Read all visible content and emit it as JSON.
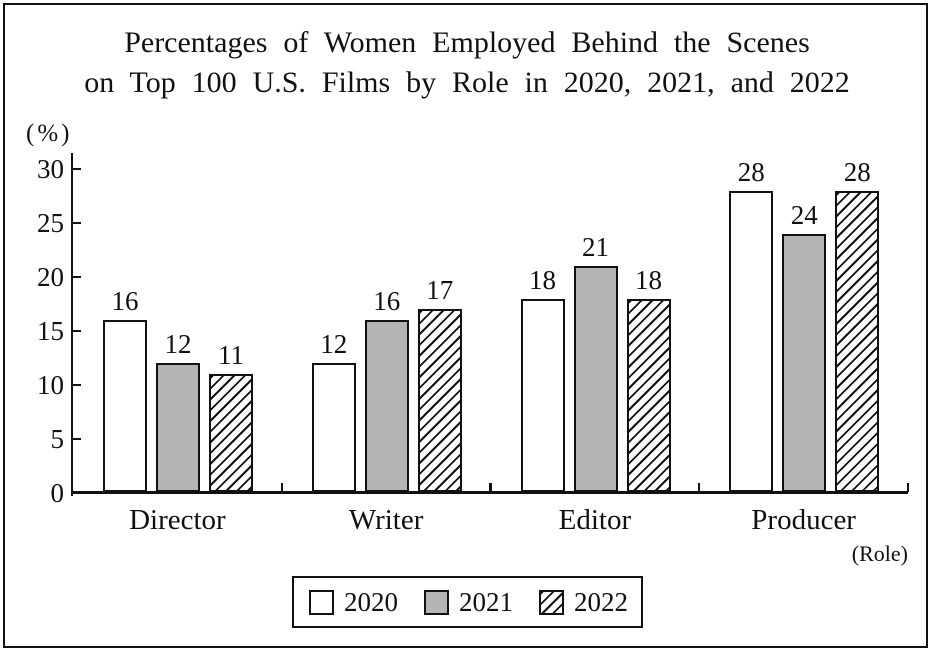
{
  "title": {
    "line1": "Percentages of Women Employed Behind the Scenes",
    "line2": "on Top 100 U.S. Films by Role in 2020, 2021, and 2022"
  },
  "chart_data": {
    "type": "bar",
    "title": "Percentages of Women Employed Behind the Scenes on Top 100 U.S. Films by Role in 2020, 2021, and 2022",
    "categories": [
      "Director",
      "Writer",
      "Editor",
      "Producer"
    ],
    "series": [
      {
        "name": "2020",
        "style": "white",
        "values": [
          16,
          12,
          18,
          28
        ]
      },
      {
        "name": "2021",
        "style": "gray",
        "values": [
          12,
          16,
          21,
          24
        ]
      },
      {
        "name": "2022",
        "style": "hatch",
        "values": [
          11,
          17,
          18,
          28
        ]
      }
    ],
    "ylabel": "(%)",
    "xlabel": "(Role)",
    "ylim": [
      0,
      30
    ],
    "yticks": [
      0,
      5,
      10,
      15,
      20,
      25,
      30
    ],
    "grid": false,
    "value_labels": true,
    "legend_position": "bottom-center",
    "colors": {
      "outline": "#111111",
      "fill_2020": "#ffffff",
      "fill_2021": "#b4b4b4",
      "fill_2022_pattern": "diagonal-hatch-/"
    }
  }
}
